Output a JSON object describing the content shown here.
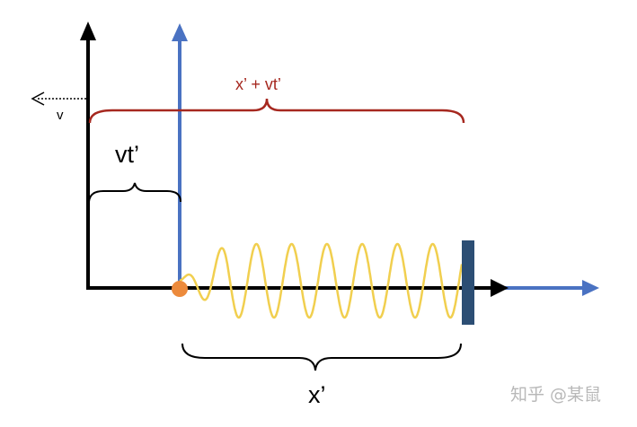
{
  "labels": {
    "sum": "x’   + vt’",
    "offset": "vt’",
    "velocity": "v",
    "length": "x’"
  },
  "watermark": "知乎 @某鼠",
  "colors": {
    "frame_axis": "#000000",
    "moving_axis": "#4a72c2",
    "spring": "#f1cf4f",
    "wall": "#2c4e74",
    "origin_dot": "#ec8a3c",
    "sum_brace": "#a6281f"
  },
  "spring": {
    "oscillations": 8
  }
}
